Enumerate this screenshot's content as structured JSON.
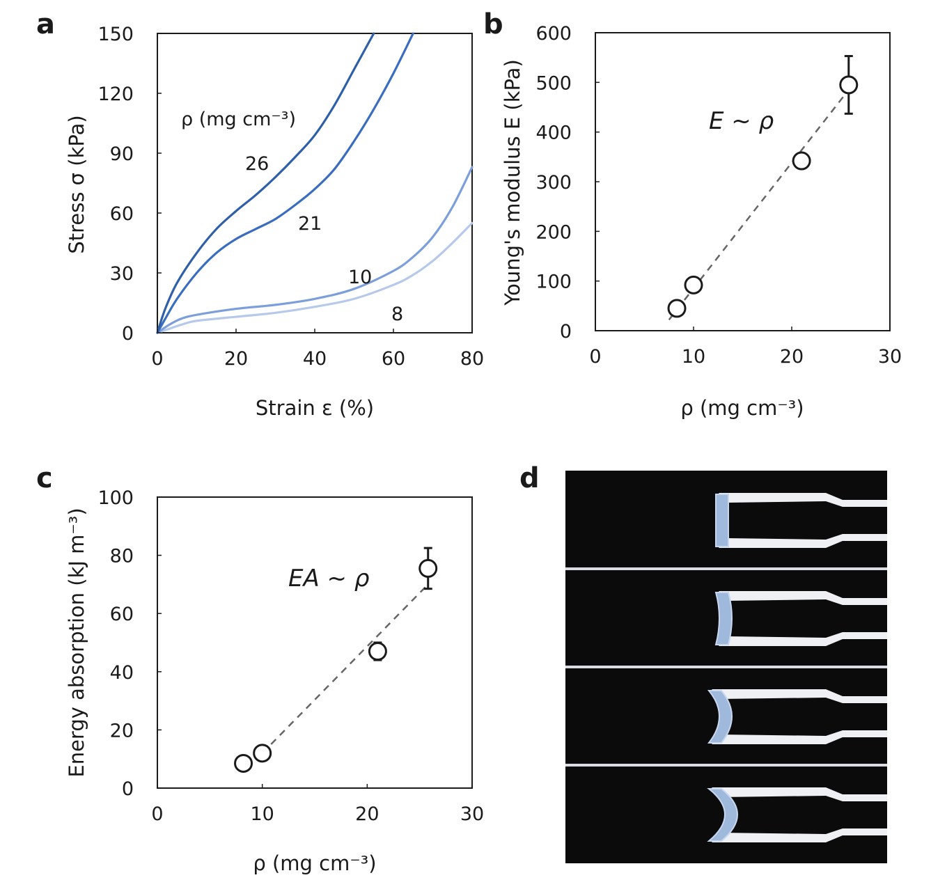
{
  "panels": {
    "a": "a",
    "b": "b",
    "c": "c",
    "d": "d"
  },
  "chart_data": [
    {
      "panel": "a",
      "type": "line",
      "xlabel": "Strain ε (%)",
      "ylabel": "Stress σ (kPa)",
      "xlim": [
        0,
        80
      ],
      "ylim": [
        0,
        150
      ],
      "xticks": [
        "0",
        "20",
        "40",
        "60",
        "80"
      ],
      "yticks": [
        "0",
        "30",
        "60",
        "90",
        "120",
        "150"
      ],
      "legend_title": "ρ (mg cm⁻³)",
      "series": [
        {
          "name": "26",
          "color": "#2f5fa8",
          "x": [
            0,
            2,
            5,
            10,
            15,
            20,
            25,
            30,
            35,
            40,
            45,
            50,
            55
          ],
          "y": [
            0,
            12,
            25,
            40,
            52,
            61,
            69,
            78,
            88,
            99,
            114,
            132,
            150
          ]
        },
        {
          "name": "21",
          "color": "#3a6dbf",
          "x": [
            0,
            2,
            5,
            10,
            15,
            20,
            25,
            30,
            35,
            40,
            45,
            50,
            55,
            60,
            65
          ],
          "y": [
            0,
            7,
            17,
            30,
            40,
            47,
            52,
            57,
            64,
            72,
            82,
            96,
            112,
            130,
            150
          ]
        },
        {
          "name": "10",
          "color": "#7c9fdb",
          "x": [
            0,
            3,
            6,
            10,
            20,
            30,
            40,
            50,
            60,
            65,
            70,
            75,
            80
          ],
          "y": [
            0,
            4,
            7,
            9,
            12,
            14,
            17,
            22,
            31,
            38,
            48,
            63,
            83
          ]
        },
        {
          "name": "8",
          "color": "#b7c9ea",
          "x": [
            0,
            3,
            6,
            10,
            20,
            30,
            40,
            50,
            60,
            65,
            70,
            75,
            80
          ],
          "y": [
            0,
            2,
            4,
            6,
            8,
            10,
            13,
            17,
            24,
            29,
            36,
            45,
            55
          ]
        }
      ]
    },
    {
      "panel": "b",
      "type": "scatter",
      "xlabel": "ρ (mg cm⁻³)",
      "ylabel": "Young's modulus E (kPa)",
      "xlim": [
        0,
        30
      ],
      "ylim": [
        0,
        600
      ],
      "xticks": [
        "0",
        "10",
        "20",
        "30"
      ],
      "yticks": [
        "0",
        "100",
        "200",
        "300",
        "400",
        "500",
        "600"
      ],
      "annotation": "E ~ ρ",
      "points": [
        {
          "x": 8.3,
          "y": 45,
          "err": 0
        },
        {
          "x": 10,
          "y": 92,
          "err": 0
        },
        {
          "x": 21,
          "y": 342,
          "err": 0
        },
        {
          "x": 25.8,
          "y": 495,
          "err": 58
        }
      ],
      "fit_line": {
        "x": [
          7.5,
          25.8
        ],
        "y": [
          22,
          485
        ]
      }
    },
    {
      "panel": "c",
      "type": "scatter",
      "xlabel": "ρ (mg cm⁻³)",
      "ylabel": "Energy absorption (kJ m⁻³)",
      "xlim": [
        0,
        30
      ],
      "ylim": [
        0,
        100
      ],
      "xticks": [
        "0",
        "10",
        "20",
        "30"
      ],
      "yticks": [
        "0",
        "20",
        "40",
        "60",
        "80",
        "100"
      ],
      "annotation": "EA ~ ρ",
      "points": [
        {
          "x": 8.2,
          "y": 8.5,
          "err": 0
        },
        {
          "x": 10,
          "y": 12,
          "err": 0
        },
        {
          "x": 21,
          "y": 47,
          "err": 3
        },
        {
          "x": 25.8,
          "y": 75.5,
          "err": 7
        }
      ],
      "fit_line": {
        "x": [
          10,
          25.8
        ],
        "y": [
          12,
          70
        ]
      }
    }
  ],
  "photo": {
    "frames": 4,
    "background": "#0b0b0c",
    "clamp_color": "#eef0f4",
    "sample_color": "#9fb9dc"
  }
}
